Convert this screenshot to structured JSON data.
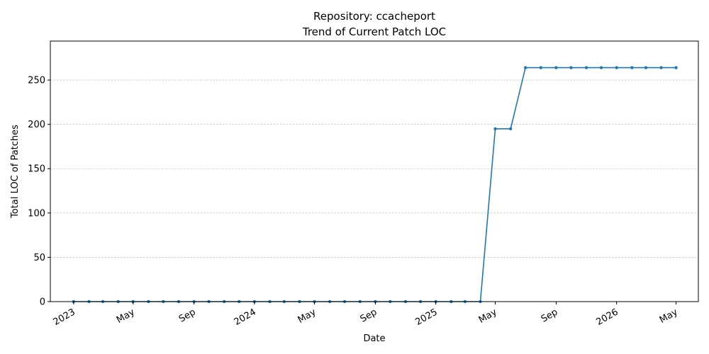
{
  "chart_data": {
    "type": "line",
    "title": "Repository: ccacheport",
    "subtitle": "Trend of Current Patch LOC",
    "xlabel": "Date",
    "ylabel": "Total LOC of Patches",
    "ylim": [
      0,
      294
    ],
    "xlim": [
      "2022-11-15",
      "2026-06-15"
    ],
    "grid": "y",
    "series_color": "#1f77b4",
    "y_ticks": [
      0,
      50,
      100,
      150,
      200,
      250
    ],
    "x_ticks": [
      {
        "date": "2023-01-01",
        "label": "2023"
      },
      {
        "date": "2023-05-01",
        "label": "May"
      },
      {
        "date": "2023-09-01",
        "label": "Sep"
      },
      {
        "date": "2024-01-01",
        "label": "2024"
      },
      {
        "date": "2024-05-01",
        "label": "May"
      },
      {
        "date": "2024-09-01",
        "label": "Sep"
      },
      {
        "date": "2025-01-01",
        "label": "2025"
      },
      {
        "date": "2025-05-01",
        "label": "May"
      },
      {
        "date": "2025-09-01",
        "label": "Sep"
      },
      {
        "date": "2026-01-01",
        "label": "2026"
      },
      {
        "date": "2026-05-01",
        "label": "May"
      }
    ],
    "series": [
      {
        "x": [
          "2023-01-01",
          "2023-02-01",
          "2023-03-01",
          "2023-04-01",
          "2023-05-01",
          "2023-06-01",
          "2023-07-01",
          "2023-08-01",
          "2023-09-01",
          "2023-10-01",
          "2023-11-01",
          "2023-12-01",
          "2024-01-01",
          "2024-02-01",
          "2024-03-01",
          "2024-04-01",
          "2024-05-01",
          "2024-06-01",
          "2024-07-01",
          "2024-08-01",
          "2024-09-01",
          "2024-10-01",
          "2024-11-01",
          "2024-12-01",
          "2025-01-01",
          "2025-02-01",
          "2025-03-01",
          "2025-04-01",
          "2025-05-01",
          "2025-06-01",
          "2025-07-01",
          "2025-08-01",
          "2025-09-01",
          "2025-10-01",
          "2025-11-01",
          "2025-12-01",
          "2026-01-01",
          "2026-02-01",
          "2026-03-01",
          "2026-04-01",
          "2026-05-01"
        ],
        "values": [
          0,
          0,
          0,
          0,
          0,
          0,
          0,
          0,
          0,
          0,
          0,
          0,
          0,
          0,
          0,
          0,
          0,
          0,
          0,
          0,
          0,
          0,
          0,
          0,
          0,
          0,
          0,
          0,
          195,
          195,
          264,
          264,
          264,
          264,
          264,
          264,
          264,
          264,
          264,
          264,
          264
        ]
      }
    ]
  }
}
